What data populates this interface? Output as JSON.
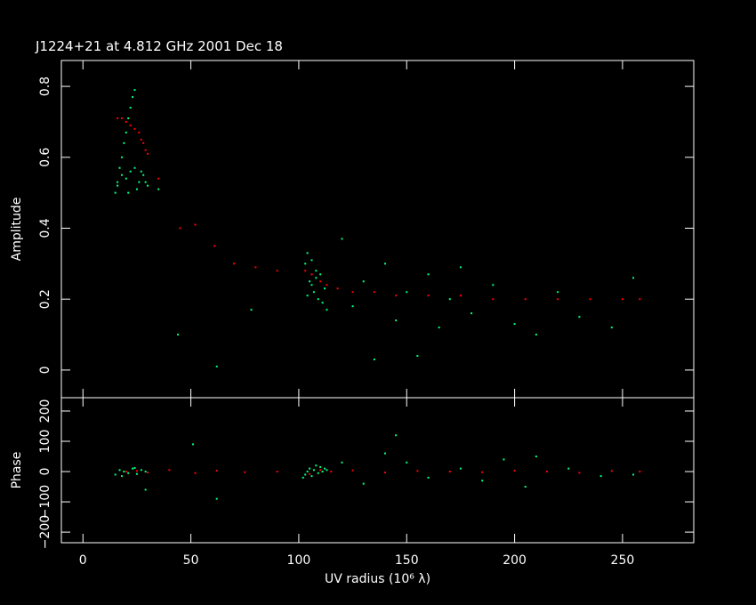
{
  "chart_data": [
    {
      "type": "scatter",
      "title": "J1224+21 at 4.812 GHz 2001 Dec 18",
      "y_label": "Amplitude",
      "xlim": [
        -10,
        283
      ],
      "xticks": [
        0,
        50,
        100,
        150,
        200,
        250
      ],
      "ylim": [
        -0.078,
        0.873
      ],
      "yticks": [
        0,
        0.2,
        0.4,
        0.6,
        0.8
      ],
      "series": [
        {
          "color": "#00ff80",
          "x": [
            15,
            16,
            17,
            18,
            19,
            20,
            21,
            22,
            23,
            24,
            16,
            18,
            20,
            22,
            24,
            26,
            28,
            30,
            21,
            25,
            27,
            29,
            103,
            104,
            105,
            106,
            107,
            108,
            109,
            110,
            111,
            112,
            113,
            104,
            106,
            108,
            120,
            125,
            130,
            135,
            140,
            145,
            150,
            155,
            160,
            165,
            170,
            175,
            180,
            190,
            200,
            210,
            220,
            230,
            245,
            255,
            62,
            78,
            44,
            35
          ],
          "values": [
            0.5,
            0.53,
            0.57,
            0.6,
            0.64,
            0.67,
            0.71,
            0.74,
            0.77,
            0.79,
            0.52,
            0.55,
            0.54,
            0.56,
            0.57,
            0.53,
            0.55,
            0.52,
            0.5,
            0.51,
            0.56,
            0.53,
            0.3,
            0.33,
            0.25,
            0.31,
            0.22,
            0.28,
            0.2,
            0.27,
            0.19,
            0.23,
            0.17,
            0.21,
            0.24,
            0.26,
            0.37,
            0.18,
            0.25,
            0.03,
            0.3,
            0.14,
            0.22,
            0.04,
            0.27,
            0.12,
            0.2,
            0.29,
            0.16,
            0.24,
            0.13,
            0.1,
            0.22,
            0.15,
            0.12,
            0.26,
            0.01,
            0.17,
            0.1,
            0.51
          ]
        },
        {
          "color": "#ff0000",
          "x": [
            16,
            18,
            20,
            22,
            24,
            26,
            27,
            28,
            29,
            30,
            35,
            45,
            52,
            61,
            70,
            80,
            90,
            103,
            106,
            110,
            113,
            118,
            125,
            135,
            145,
            160,
            175,
            190,
            205,
            220,
            235,
            250,
            258
          ],
          "values": [
            0.71,
            0.71,
            0.7,
            0.69,
            0.68,
            0.67,
            0.65,
            0.64,
            0.62,
            0.61,
            0.54,
            0.4,
            0.41,
            0.35,
            0.3,
            0.29,
            0.28,
            0.28,
            0.27,
            0.25,
            0.24,
            0.23,
            0.22,
            0.22,
            0.21,
            0.21,
            0.21,
            0.2,
            0.2,
            0.2,
            0.2,
            0.2,
            0.2
          ]
        }
      ]
    },
    {
      "type": "scatter",
      "y_label": "Phase",
      "x_label": "UV radius  (10⁶ λ)",
      "xlim": [
        -10,
        283
      ],
      "xticks": [
        0,
        50,
        100,
        150,
        200,
        250
      ],
      "ylim": [
        -235,
        244
      ],
      "yticks": [
        {
          "value": -200,
          "label": "−200"
        },
        {
          "value": -100,
          "label": "−100"
        },
        0,
        100,
        200
      ],
      "series": [
        {
          "color": "#00ff80",
          "x": [
            15,
            17,
            19,
            21,
            23,
            25,
            27,
            29,
            18,
            24,
            102,
            103,
            104,
            105,
            106,
            107,
            108,
            109,
            110,
            111,
            112,
            113,
            120,
            130,
            140,
            145,
            150,
            160,
            175,
            185,
            195,
            205,
            210,
            225,
            240,
            255,
            51,
            62,
            29
          ],
          "values": [
            -10,
            5,
            0,
            -5,
            10,
            -8,
            5,
            0,
            -15,
            12,
            -20,
            -10,
            0,
            10,
            -15,
            5,
            20,
            -5,
            15,
            0,
            10,
            5,
            30,
            -40,
            60,
            120,
            30,
            -20,
            10,
            -30,
            40,
            -50,
            50,
            10,
            -15,
            -10,
            90,
            -90,
            -60
          ]
        },
        {
          "color": "#ff0000",
          "x": [
            20,
            25,
            30,
            40,
            52,
            62,
            75,
            90,
            105,
            110,
            115,
            125,
            140,
            155,
            170,
            185,
            200,
            215,
            230,
            245,
            258
          ],
          "values": [
            0,
            2,
            -3,
            5,
            -5,
            3,
            -2,
            0,
            -8,
            5,
            0,
            4,
            -3,
            2,
            0,
            -2,
            3,
            0,
            -4,
            2,
            0
          ]
        }
      ]
    }
  ]
}
